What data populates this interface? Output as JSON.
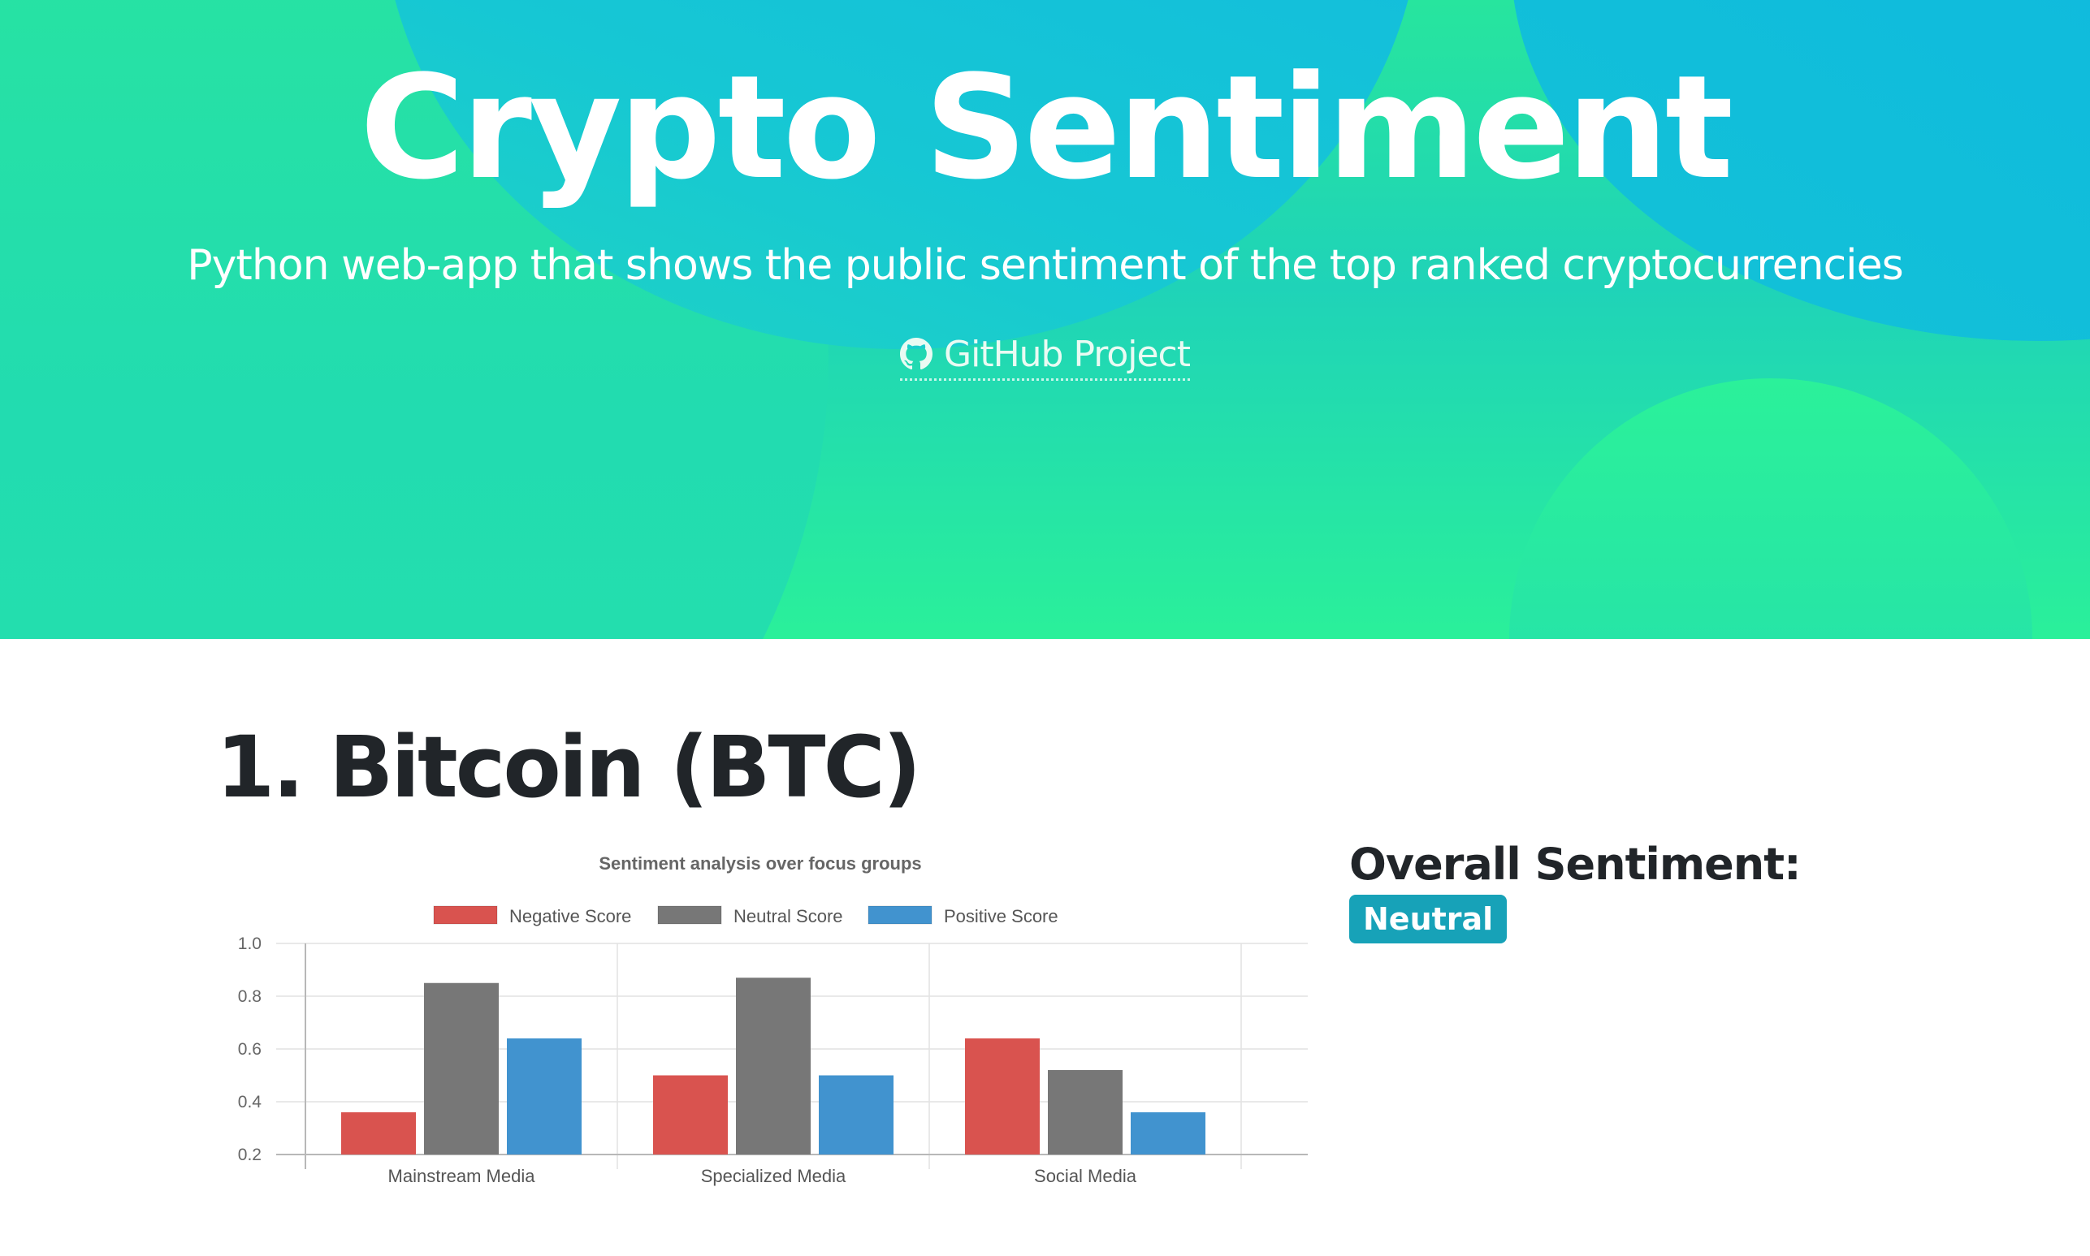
{
  "hero": {
    "title": "Crypto Sentiment",
    "subtitle": "Python web-app that shows the public sentiment of the top ranked cryptocurrencies",
    "github_link": "GitHub Project",
    "github_icon": "github-icon"
  },
  "coins": [
    {
      "heading": "1. Bitcoin (BTC)",
      "overall_label": "Overall Sentiment:",
      "overall_value": "Neutral",
      "badge_color": "#17a2b8"
    }
  ],
  "chart_data": {
    "type": "bar",
    "title": "Sentiment analysis over focus groups",
    "categories": [
      "Mainstream Media",
      "Specialized Media",
      "Social Media"
    ],
    "series": [
      {
        "name": "Negative Score",
        "color": "#d9534f",
        "values": [
          0.36,
          0.5,
          0.64
        ]
      },
      {
        "name": "Neutral Score",
        "color": "#777777",
        "values": [
          0.85,
          0.87,
          0.52
        ]
      },
      {
        "name": "Positive Score",
        "color": "#4193cf",
        "values": [
          0.64,
          0.5,
          0.36
        ]
      }
    ],
    "ylim": [
      0.2,
      1.0
    ],
    "yticks": [
      "1.0",
      "0.8",
      "0.6",
      "0.4",
      "0.2"
    ],
    "grid": true,
    "legend": "top"
  }
}
